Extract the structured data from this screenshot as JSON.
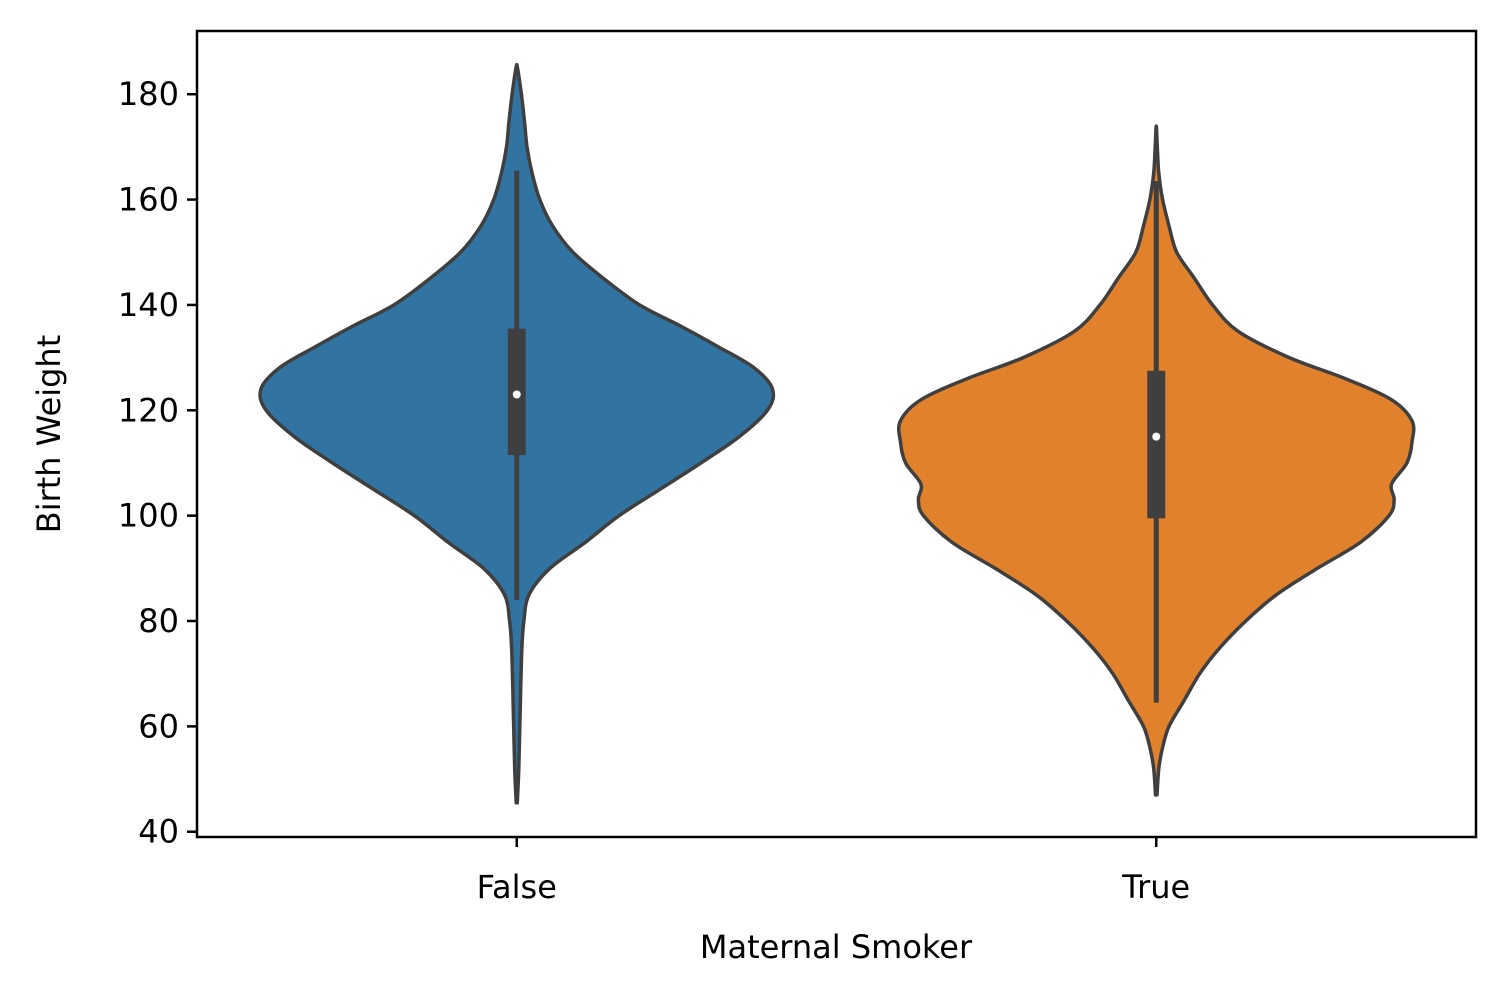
{
  "chart_data": {
    "type": "violin",
    "xlabel": "Maternal Smoker",
    "ylabel": "Birth Weight",
    "categories": [
      "False",
      "True"
    ],
    "ylim": [
      39,
      192
    ],
    "yticks": [
      40,
      60,
      80,
      100,
      120,
      140,
      160,
      180
    ],
    "grid": false,
    "legend": "none",
    "colors": {
      "False": "#3274a1",
      "True": "#e1812c",
      "outline": "#3f3f3f",
      "median_dot": "#ffffff"
    },
    "series": [
      {
        "category": "False",
        "box": {
          "median": 123,
          "q1": 111.5,
          "q3": 135.5,
          "whisker_low": 84,
          "whisker_high": 165.5
        },
        "density": {
          "y": [
            45.5,
            52,
            60,
            68,
            75,
            80,
            85,
            90,
            95,
            100,
            105,
            110,
            115,
            120,
            124,
            128,
            132,
            136,
            140,
            145,
            150,
            155,
            160,
            165,
            170,
            175,
            180,
            185
          ],
          "w": [
            0.002,
            0.008,
            0.012,
            0.016,
            0.02,
            0.028,
            0.048,
            0.13,
            0.27,
            0.4,
            0.56,
            0.72,
            0.87,
            0.98,
            1.0,
            0.93,
            0.79,
            0.64,
            0.48,
            0.34,
            0.22,
            0.14,
            0.09,
            0.06,
            0.04,
            0.03,
            0.018,
            0.003
          ]
        }
      },
      {
        "category": "True",
        "box": {
          "median": 115,
          "q1": 99.5,
          "q3": 127.5,
          "whisker_low": 64.5,
          "whisker_high": 163.5
        },
        "density": {
          "y": [
            47,
            52,
            56,
            60,
            65,
            70,
            75,
            80,
            85,
            90,
            95,
            100,
            103,
            106,
            110,
            114,
            118,
            122,
            126,
            130,
            135,
            140,
            145,
            150,
            155,
            160,
            165,
            170,
            173.5
          ],
          "w": [
            0.003,
            0.01,
            0.025,
            0.05,
            0.11,
            0.17,
            0.25,
            0.35,
            0.47,
            0.63,
            0.8,
            0.91,
            0.93,
            0.92,
            0.98,
            1.0,
            1.0,
            0.92,
            0.74,
            0.52,
            0.32,
            0.22,
            0.15,
            0.08,
            0.05,
            0.025,
            0.01,
            0.004,
            0.001
          ]
        }
      }
    ]
  }
}
